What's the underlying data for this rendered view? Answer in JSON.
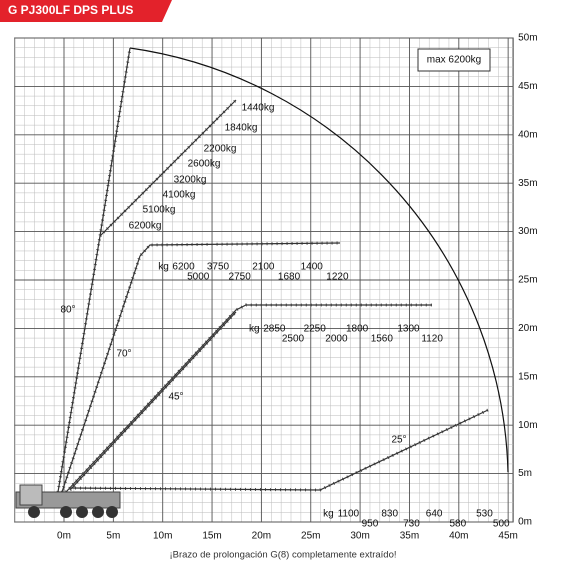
{
  "chart_data": {
    "type": "load_chart",
    "title": "G PJ300LF DPS PLUS",
    "footnote": "¡Brazo de prolongación G(8) completamente extraído!",
    "max_label": "max 6200kg",
    "xlim": [
      -5,
      45.5
    ],
    "ylim": [
      0,
      50
    ],
    "xticks": [
      {
        "value": 0,
        "label": "0m"
      },
      {
        "value": 5,
        "label": "5m"
      },
      {
        "value": 10,
        "label": "10m"
      },
      {
        "value": 15,
        "label": "15m"
      },
      {
        "value": 20,
        "label": "20m"
      },
      {
        "value": 25,
        "label": "25m"
      },
      {
        "value": 30,
        "label": "30m"
      },
      {
        "value": 35,
        "label": "35m"
      },
      {
        "value": 40,
        "label": "40m"
      },
      {
        "value": 45,
        "label": "45m"
      }
    ],
    "yticks": [
      {
        "value": 0,
        "label": "0m"
      },
      {
        "value": 5,
        "label": "5m"
      },
      {
        "value": 10,
        "label": "10m"
      },
      {
        "value": 15,
        "label": "15m"
      },
      {
        "value": 20,
        "label": "20m"
      },
      {
        "value": 25,
        "label": "25m"
      },
      {
        "value": 30,
        "label": "30m"
      },
      {
        "value": 35,
        "label": "35m"
      },
      {
        "value": 40,
        "label": "40m"
      },
      {
        "value": 45,
        "label": "45m"
      },
      {
        "value": 50,
        "label": "50m"
      }
    ],
    "grid": true,
    "angles": [
      "80°",
      "70°",
      "45°",
      "25°"
    ],
    "diagonal_loads": {
      "loads": [
        1440,
        1840,
        2200,
        2600,
        3200,
        4100,
        5100,
        6200
      ],
      "value_labels": [
        "1440kg",
        "1840kg",
        "2200kg",
        "2600kg",
        "3200kg",
        "4100kg",
        "5100kg",
        "6200kg"
      ]
    },
    "horizontal_groups": [
      {
        "unit": "kg",
        "height": 27.5,
        "radii": [
          11.3,
          13.6,
          15.6,
          17.8,
          20.2,
          22.8,
          25.1,
          27.7
        ],
        "loads": [
          6200,
          5000,
          3750,
          2750,
          2100,
          1680,
          1400,
          1220
        ]
      },
      {
        "unit": "kg",
        "height": 21.1,
        "radii": [
          20.5,
          23.2,
          25.4,
          27.6,
          29.7,
          32.2,
          34.9,
          37.3
        ],
        "loads": [
          2850,
          2500,
          2250,
          2000,
          1800,
          1560,
          1300,
          1120
        ]
      },
      {
        "unit": "kg",
        "height": 2.0,
        "radii": [
          28.0,
          31.0,
          33.0,
          35.2,
          37.5,
          39.9,
          42.6,
          44.3
        ],
        "loads": [
          1100,
          950,
          830,
          730,
          640,
          580,
          530,
          500
        ]
      }
    ]
  }
}
